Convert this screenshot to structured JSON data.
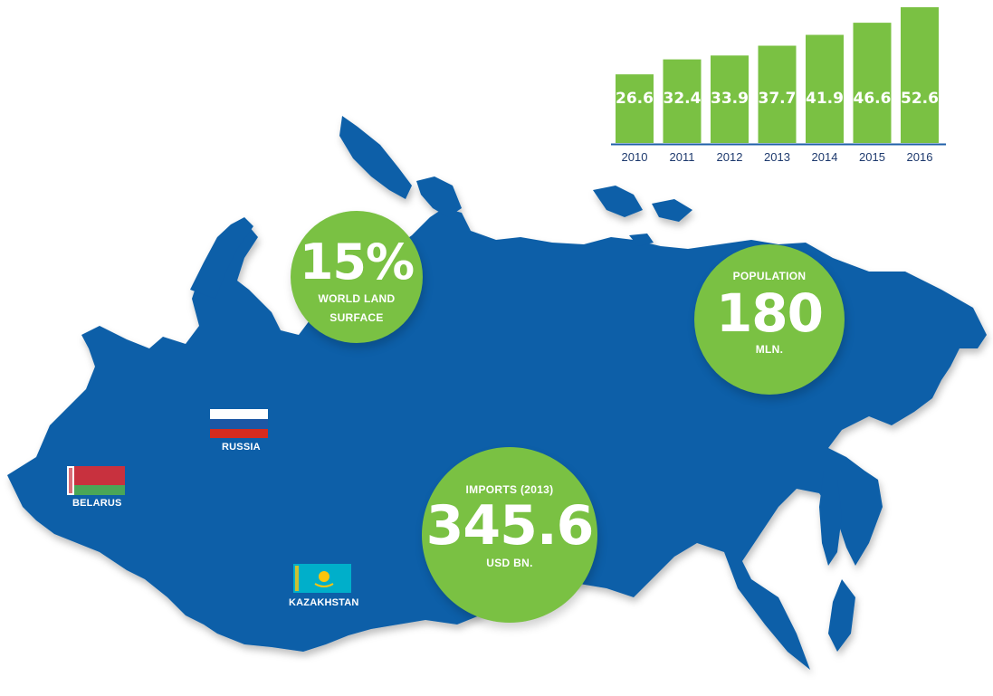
{
  "chart_data": {
    "type": "bar",
    "categories": [
      "2010",
      "2011",
      "2012",
      "2013",
      "2014",
      "2015",
      "2016"
    ],
    "values": [
      26.6,
      32.4,
      33.9,
      37.7,
      41.9,
      46.6,
      52.6
    ],
    "value_labels": [
      "26.6",
      "32.4",
      "33.9",
      "37.7",
      "41.9",
      "46.6",
      "52.6"
    ],
    "title": "",
    "xlabel": "",
    "ylabel": "",
    "grid": false,
    "bar_color": "#7ac143",
    "axis_color": "#1f5fa8"
  },
  "stats": {
    "land": {
      "big": "15%",
      "line1": "WORLD LAND",
      "line2": "SURFACE"
    },
    "population": {
      "label": "POPULATION",
      "big": "180",
      "unit": "MLN."
    },
    "imports": {
      "label": "IMPORTS (2013)",
      "big": "345.6",
      "unit": "USD BN."
    }
  },
  "countries": {
    "russia": "RUSSIA",
    "belarus": "BELARUS",
    "kazakhstan": "KAZAKHSTAN"
  },
  "colors": {
    "map": "#0a5ea8",
    "accent": "#7ac143",
    "russia_flag": [
      "#ffffff",
      "#1c57a5",
      "#d52b1e"
    ],
    "belarus_flag": [
      "#c8313e",
      "#4aa657"
    ],
    "kazakhstan_flag": [
      "#00afca",
      "#fec50c"
    ]
  }
}
